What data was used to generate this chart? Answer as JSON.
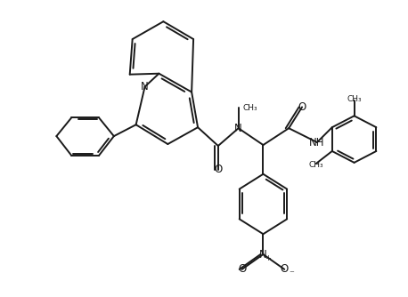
{
  "bg_color": "#ffffff",
  "line_color": "#1a1a1a",
  "line_width": 1.4,
  "font_size": 8.5,
  "figsize": [
    4.58,
    3.34
  ],
  "dpi": 100,
  "xlim": [
    0,
    458
  ],
  "ylim": [
    0,
    334
  ]
}
